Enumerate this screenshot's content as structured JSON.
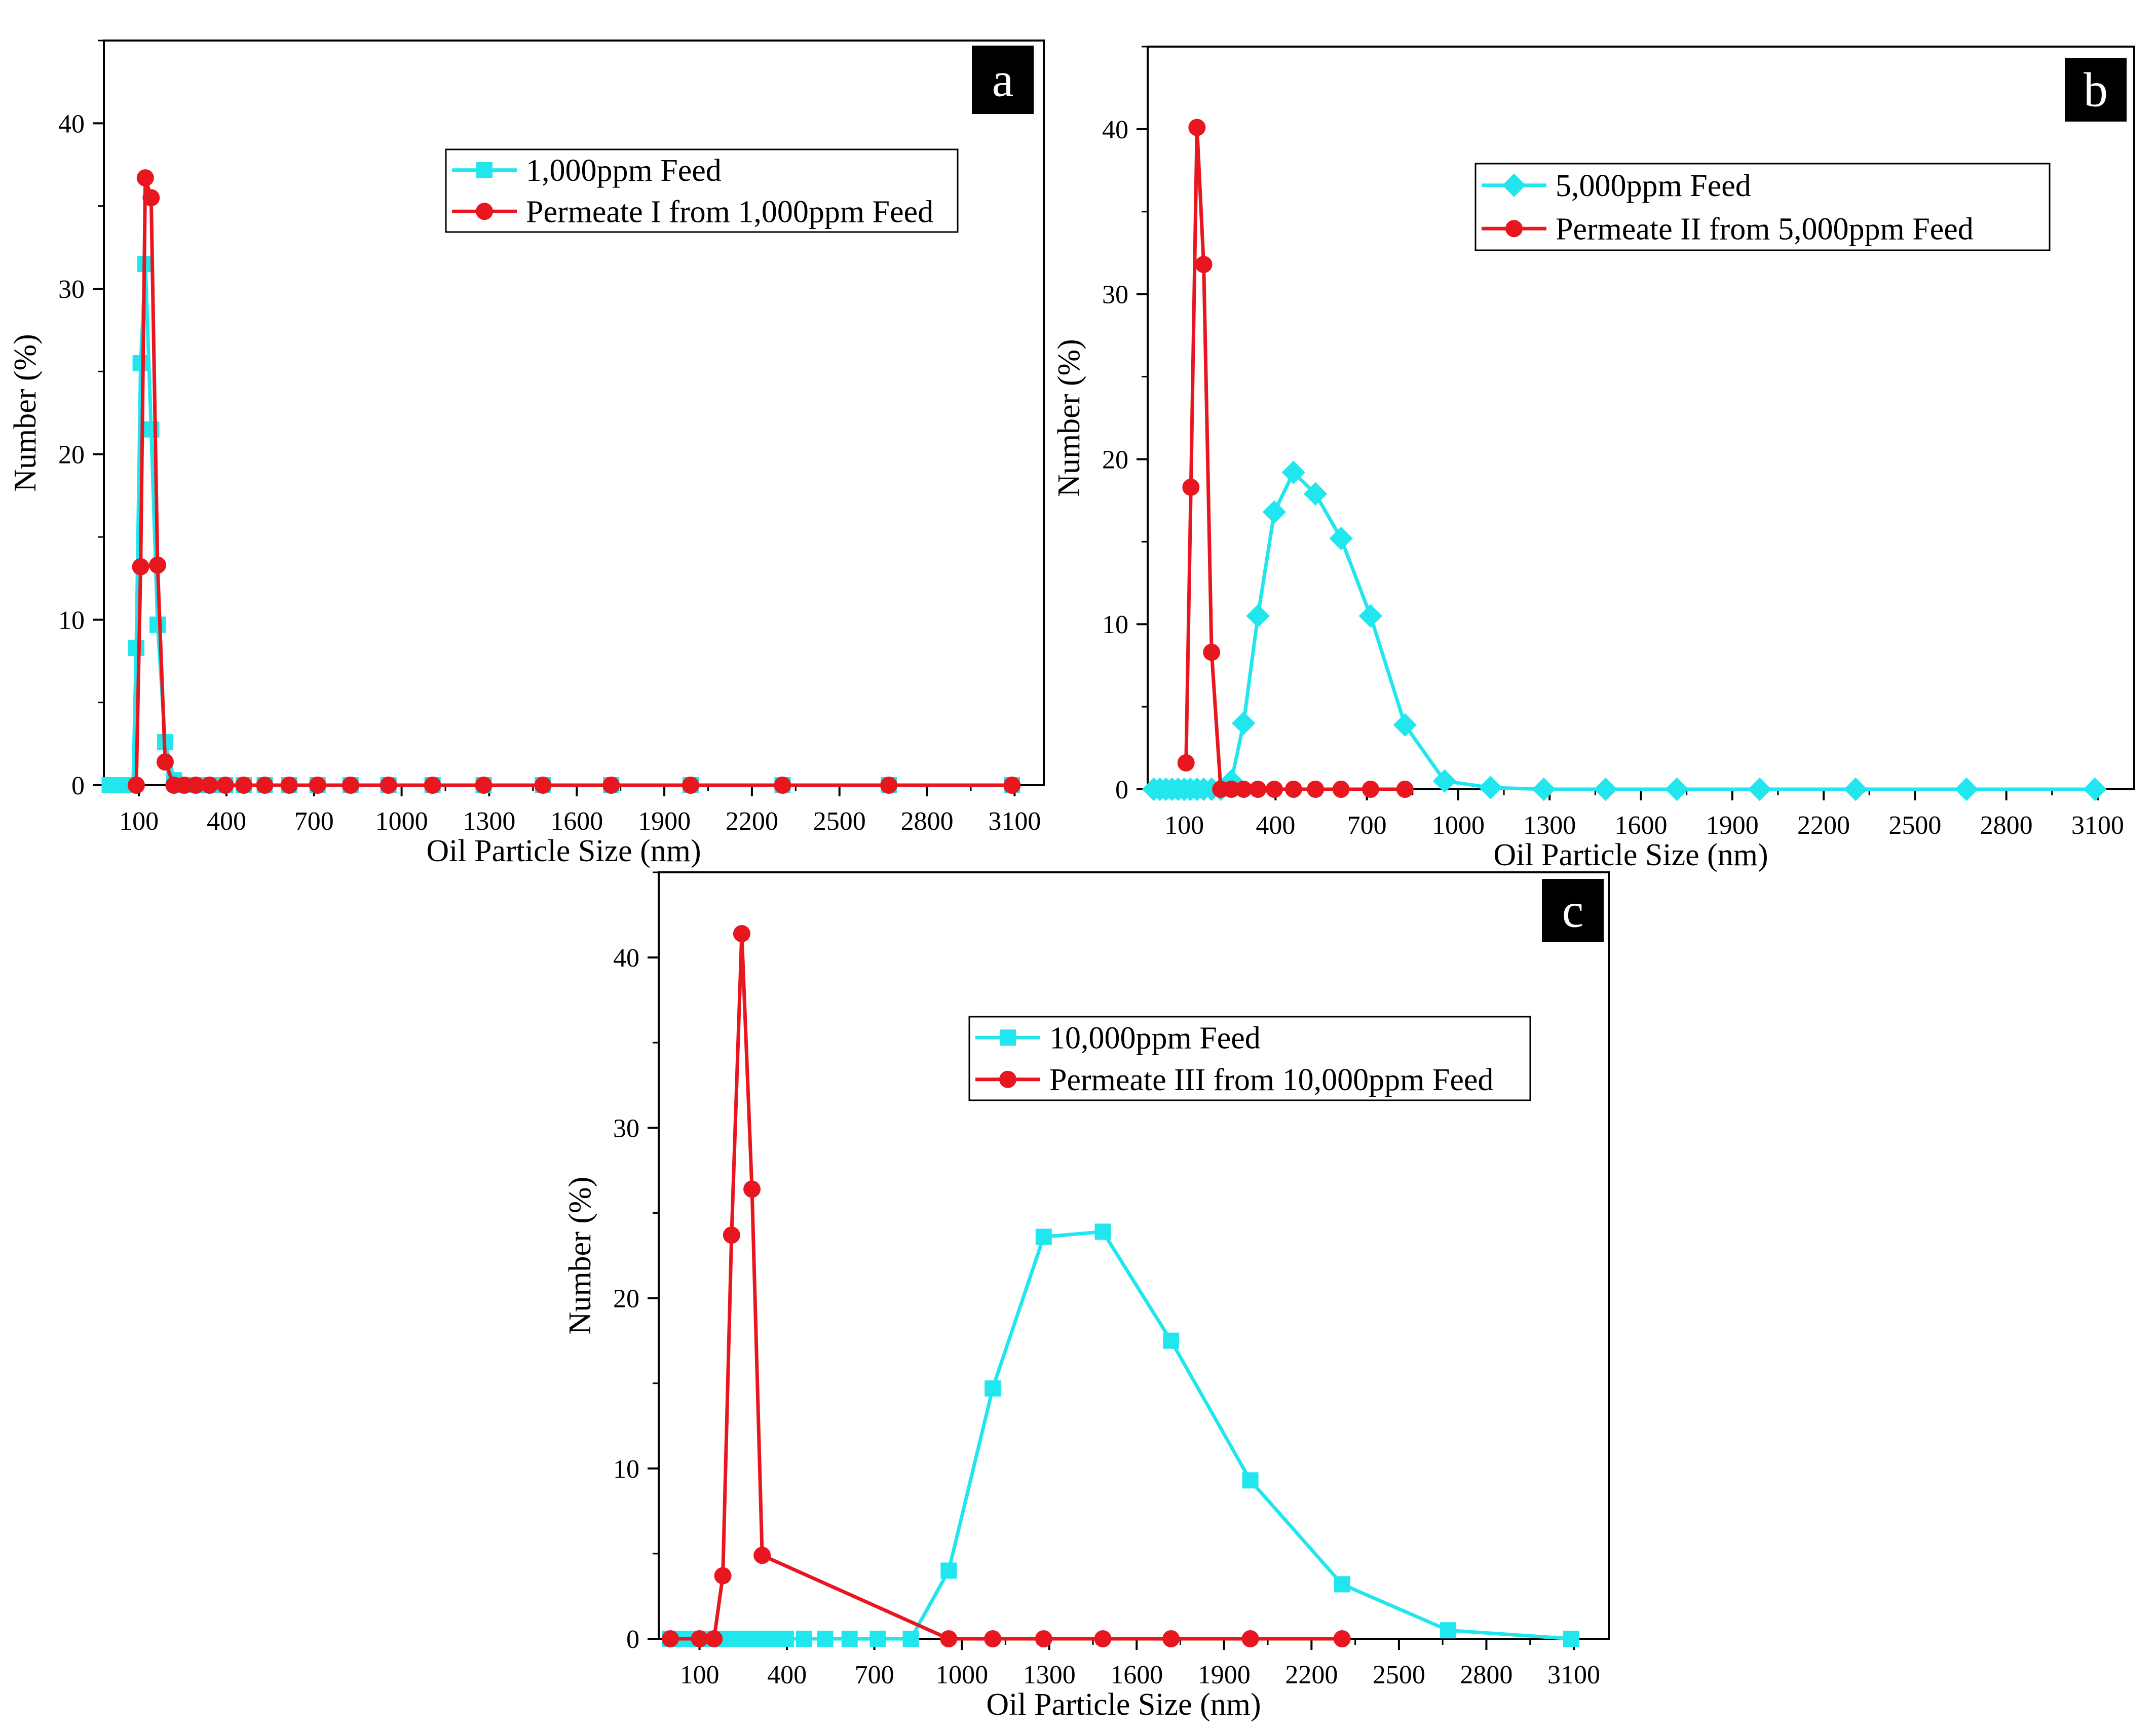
{
  "chart_data": [
    {
      "type": "line",
      "panel_label": "a",
      "xlabel": "Oil Particle Size (nm)",
      "ylabel": "Number (%)",
      "xlim": [
        -20,
        3200
      ],
      "ylim": [
        0,
        45
      ],
      "xticks": [
        100,
        400,
        700,
        1000,
        1300,
        1600,
        1900,
        2200,
        2500,
        2800,
        3100
      ],
      "yticks": [
        0,
        10,
        20,
        30,
        40
      ],
      "legend_position": "top-center",
      "series": [
        {
          "name": "1,000ppm Feed",
          "color": "#22e6ee",
          "marker": "square",
          "x": [
            0,
            10,
            20,
            30,
            40,
            50,
            60,
            70,
            80,
            91,
            106,
            122,
            142,
            164,
            190,
            220,
            255,
            295,
            342,
            396,
            459,
            531,
            615,
            712,
            825,
            955,
            1106,
            1281,
            1484,
            1718,
            1990,
            2305,
            2669,
            3091
          ],
          "y": [
            0,
            0,
            0,
            0,
            0,
            0,
            0,
            0,
            0,
            8.3,
            25.5,
            31.5,
            21.5,
            9.7,
            2.6,
            0.3,
            0,
            0,
            0,
            0,
            0,
            0,
            0,
            0,
            0,
            0,
            0,
            0,
            0,
            0,
            0,
            0,
            0,
            0
          ]
        },
        {
          "name": "Permeate I from 1,000ppm Feed",
          "color": "#e8161e",
          "marker": "circle",
          "x": [
            91,
            106,
            122,
            142,
            164,
            190,
            220,
            255,
            295,
            342,
            396,
            459,
            531,
            615,
            712,
            825,
            955,
            1106,
            1281,
            1484,
            1718,
            1990,
            2305,
            2669,
            3091
          ],
          "y": [
            0,
            13.2,
            36.7,
            35.5,
            13.3,
            1.4,
            0,
            0,
            0,
            0,
            0,
            0,
            0,
            0,
            0,
            0,
            0,
            0,
            0,
            0,
            0,
            0,
            0,
            0,
            0
          ]
        }
      ]
    },
    {
      "type": "line",
      "panel_label": "b",
      "xlabel": "Oil Particle Size (nm)",
      "ylabel": "Number (%)",
      "xlim": [
        -20,
        3220
      ],
      "ylim": [
        0,
        45
      ],
      "xticks": [
        100,
        400,
        700,
        1000,
        1300,
        1600,
        1900,
        2200,
        2500,
        2800,
        3100
      ],
      "yticks": [
        0,
        10,
        20,
        30,
        40
      ],
      "legend_position": "top-right",
      "series": [
        {
          "name": "5,000ppm Feed",
          "color": "#22e6ee",
          "marker": "diamond",
          "x": [
            0,
            20,
            40,
            60,
            80,
            100,
            120,
            142,
            164,
            190,
            220,
            255,
            295,
            342,
            396,
            459,
            531,
            615,
            712,
            825,
            955,
            1106,
            1281,
            1484,
            1718,
            1990,
            2305,
            2669,
            3091
          ],
          "y": [
            0,
            0,
            0,
            0,
            0,
            0,
            0,
            0,
            0,
            0,
            0,
            0.5,
            4.0,
            10.5,
            16.8,
            19.2,
            17.9,
            15.2,
            10.5,
            3.9,
            0.5,
            0.1,
            0,
            0,
            0,
            0,
            0,
            0,
            0
          ]
        },
        {
          "name": "Permeate II from 5,000ppm Feed",
          "color": "#e8161e",
          "marker": "circle",
          "x": [
            106,
            122,
            142,
            164,
            190,
            220,
            255,
            295,
            342,
            396,
            459,
            531,
            615,
            712,
            825
          ],
          "y": [
            1.6,
            18.3,
            40.1,
            31.8,
            8.3,
            0,
            0,
            0,
            0,
            0,
            0,
            0,
            0,
            0,
            0
          ]
        }
      ]
    },
    {
      "type": "line",
      "panel_label": "c",
      "xlabel": "Oil Particle Size (nm)",
      "ylabel": "Number (%)",
      "xlim": [
        -40,
        3220
      ],
      "ylim": [
        0,
        45
      ],
      "xticks": [
        100,
        400,
        700,
        1000,
        1300,
        1600,
        1900,
        2200,
        2500,
        2800,
        3100
      ],
      "yticks": [
        0,
        10,
        20,
        30,
        40
      ],
      "legend_position": "top-center",
      "series": [
        {
          "name": "10,000ppm Feed",
          "color": "#22e6ee",
          "marker": "square",
          "x": [
            0,
            50,
            100,
            150,
            200,
            250,
            300,
            350,
            396,
            459,
            531,
            615,
            712,
            825,
            955,
            1106,
            1281,
            1484,
            1718,
            1990,
            2305,
            2669,
            3091
          ],
          "y": [
            0,
            0,
            0,
            0,
            0,
            0,
            0,
            0,
            0,
            0,
            0,
            0,
            0,
            0,
            4.0,
            14.7,
            23.6,
            23.9,
            17.5,
            9.3,
            3.2,
            0.5,
            0
          ]
        },
        {
          "name": "Permeate III from 10,000ppm Feed",
          "color": "#e8161e",
          "marker": "circle",
          "x": [
            0,
            100,
            150,
            180,
            210,
            245,
            280,
            315,
            955,
            1106,
            1281,
            1484,
            1718,
            1990,
            2305
          ],
          "y": [
            0,
            0,
            0,
            3.7,
            23.7,
            41.4,
            26.4,
            4.9,
            0,
            0,
            0,
            0,
            0,
            0,
            0
          ]
        }
      ]
    }
  ]
}
